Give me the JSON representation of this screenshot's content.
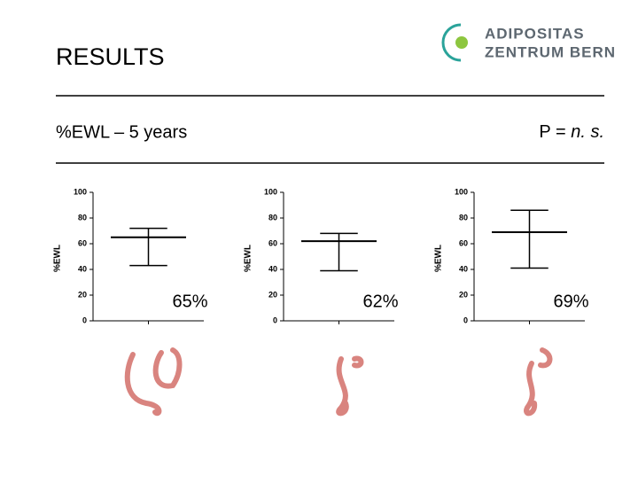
{
  "slide": {
    "title": "RESULTS",
    "subtitle": "%EWL – 5 years",
    "p_label": "P =",
    "p_value": "n. s.",
    "logo": {
      "line1": "ADIPOSITAS",
      "line2": "ZENTRUM BERN"
    }
  },
  "chart_data": [
    {
      "type": "errorbar",
      "ylabel": "%EWL",
      "categories": [
        null
      ],
      "values": [
        65
      ],
      "value_labels": [
        "65%"
      ],
      "upper": [
        72
      ],
      "lower": [
        43
      ],
      "color": "#000000",
      "ylim": [
        0,
        100
      ],
      "yticks": [
        0,
        20,
        40,
        60,
        80,
        100
      ]
    },
    {
      "type": "errorbar",
      "ylabel": "%EWL",
      "categories": [
        null
      ],
      "values": [
        62
      ],
      "value_labels": [
        "62%"
      ],
      "upper": [
        68
      ],
      "lower": [
        39
      ],
      "color": "#000000",
      "ylim": [
        0,
        100
      ],
      "yticks": [
        0,
        20,
        40,
        60,
        80,
        100
      ]
    },
    {
      "type": "errorbar",
      "ylabel": "%EWL",
      "categories": [
        null
      ],
      "values": [
        69
      ],
      "value_labels": [
        "69%"
      ],
      "upper": [
        86
      ],
      "lower": [
        41
      ],
      "color": "#000000",
      "ylim": [
        0,
        100
      ],
      "yticks": [
        0,
        20,
        40,
        60,
        80,
        100
      ]
    }
  ]
}
